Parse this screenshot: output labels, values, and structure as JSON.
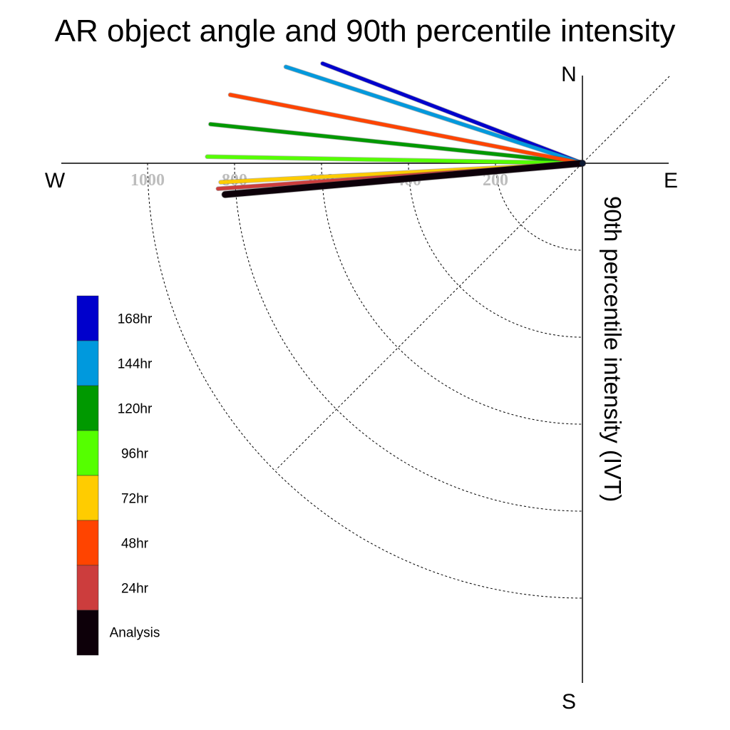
{
  "chart_data": {
    "type": "polar-line",
    "title": "AR object angle and 90th percentile intensity",
    "ylabel": "90th percentile intensity (IVT)",
    "compass": {
      "north": "N",
      "south": "S",
      "east": "E",
      "west": "W"
    },
    "radial_ticks": [
      "200",
      "400",
      "600",
      "800",
      "1000"
    ],
    "radial_tick_values": [
      200,
      400,
      600,
      800,
      1000
    ],
    "radial_max": 1200,
    "series": [
      {
        "name": "168hr",
        "color": "#0000cc",
        "angle_deg": 201,
        "value": 640
      },
      {
        "name": "144hr",
        "color": "#0099dd",
        "angle_deg": 198,
        "value": 717
      },
      {
        "name": "120hr",
        "color": "#009900",
        "angle_deg": 186,
        "value": 860
      },
      {
        "name": "96hr",
        "color": "#55ff00",
        "angle_deg": 181,
        "value": 863
      },
      {
        "name": "72hr",
        "color": "#ffcc00",
        "angle_deg": 177,
        "value": 833
      },
      {
        "name": "48hr",
        "color": "#ff4400",
        "angle_deg": 191,
        "value": 825
      },
      {
        "name": "24hr",
        "color": "#cc3d3d",
        "angle_deg": 176,
        "value": 840
      },
      {
        "name": "Analysis",
        "color": "#0d0009",
        "angle_deg": 175,
        "value": 825
      }
    ],
    "legend": {
      "placement": "left",
      "entries": [
        "168hr",
        "144hr",
        "120hr",
        "96hr",
        "72hr",
        "48hr",
        "24hr",
        "Analysis"
      ],
      "colors": [
        "#0000cc",
        "#0099dd",
        "#009900",
        "#55ff00",
        "#ffcc00",
        "#ff4400",
        "#cc3d3d",
        "#0d0009"
      ]
    }
  }
}
